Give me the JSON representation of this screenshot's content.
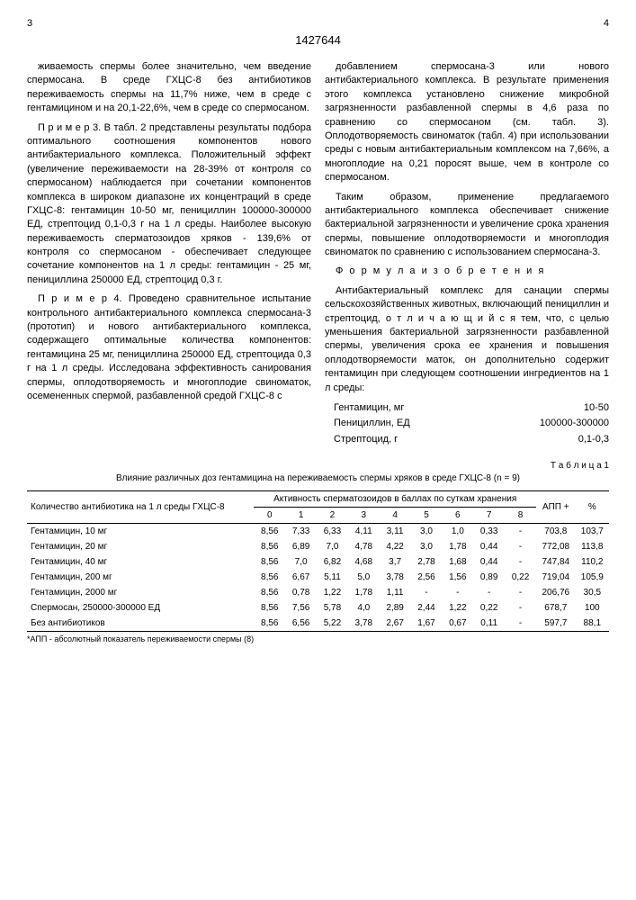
{
  "page_left": "3",
  "page_right": "4",
  "doc_number": "1427644",
  "left_col": {
    "p1": "живаемость спермы более значительно, чем введение спермосана. В среде ГХЦС-8 без антибиотиков переживаемость спермы на 11,7% ниже, чем в среде с гентамицином и на 20,1-22,6%, чем в среде со спермосаном.",
    "p2": "П р и м е р 3. В табл. 2 представлены результаты подбора оптимального соотношения компонентов нового антибактериального комплекса. Положительный эффект (увеличение переживаемости на 28-39% от контроля со спермосаном) наблюдается при сочетании компонентов комплекса в широком диапазоне их концентраций в среде ГХЦС-8: гентамицин 10-50 мг, пенициллин 100000-300000 ЕД, стрептоцид 0,1-0,3 г на 1 л среды. Наиболее высокую переживаемость сперматозоидов хряков - 139,6% от контроля со спермосаном - обеспечивает следующее сочетание компонентов на 1 л среды: гентамицин - 25 мг, пенициллина 250000 ЕД, стрептоцид 0,3 г.",
    "p3": "П р и м е р 4. Проведено сравнительное испытание контрольного антибактериального комплекса спермосана-3 (прототип) и нового антибактериального комплекса, содержащего оптимальные количества компонентов: гентамицина 25 мг, пенициллина 250000 ЕД, стрептоцида 0,3 г на 1 л среды. Исследована эффективность санирования спермы, оплодотворяемость и многоплодие свиноматок, осемененных спермой, разбавленной средой ГХЦС-8 с"
  },
  "right_col": {
    "p1": "добавлением спермосана-3 или нового антибактериального комплекса. В результате применения этого комплекса установлено снижение микробной загрязненности разбавленной спермы в 4,6 раза по сравнению со спермосаном (см. табл. 3). Оплодотворяемость свиноматок (табл. 4) при использовании среды с новым антибактериальным комплексом на 7,66%, а многоплодие на 0,21 поросят выше, чем в контроле со спермосаном.",
    "p2": "Таким образом, применение предлагаемого антибактериального комплекса обеспечивает снижение бактериальной загрязненности и увеличение срока хранения спермы, повышение оплодотворяемости и многоплодия свиноматок по сравнению с использованием спермосана-3.",
    "formula_title": "Ф о р м у л а  и з о б р е т е н и я",
    "p3": "Антибактериальный комплекс для санации спермы сельскохозяйственных животных, включающий пенициллин и стрептоцид, о т л и ч а ю щ и й с я тем, что, с целью уменьшения бактериальной загрязненности разбавленной спермы, увеличения срока ее хранения и повышения оплодотворяемости маток, он дополнительно содержит гентамицин при следующем соотношении ингредиентов на 1 л среды:",
    "ingredients": [
      {
        "name": "Гентамицин, мг",
        "val": "10-50"
      },
      {
        "name": "Пенициллин, ЕД",
        "val": "100000-300000"
      },
      {
        "name": "Стрептоцид, г",
        "val": "0,1-0,3"
      }
    ]
  },
  "table": {
    "title": "Т а б л и ц а 1",
    "caption": "Влияние различных доз гентамицина на переживаемость спермы хряков в среде ГХЦС-8 (n = 9)",
    "header_col1": "Количество антибиотика на 1 л среды ГХЦС-8",
    "header_span": "Активность сперматозоидов в баллах по суткам хранения",
    "day_headers": [
      "0",
      "1",
      "2",
      "3",
      "4",
      "5",
      "6",
      "7",
      "8"
    ],
    "app_header": "АПП +",
    "pct_header": "%",
    "rows": [
      {
        "name": "Гентамицин, 10 мг",
        "vals": [
          "8,56",
          "7,33",
          "6,33",
          "4,11",
          "3,11",
          "3,0",
          "1,0",
          "0,33",
          "-",
          "703,8",
          "103,7"
        ]
      },
      {
        "name": "Гентамицин, 20 мг",
        "vals": [
          "8,56",
          "6,89",
          "7,0",
          "4,78",
          "4,22",
          "3,0",
          "1,78",
          "0,44",
          "-",
          "772,08",
          "113,8"
        ]
      },
      {
        "name": "Гентамицин, 40 мг",
        "vals": [
          "8,56",
          "7,0",
          "6,82",
          "4,68",
          "3,7",
          "2,78",
          "1,68",
          "0,44",
          "-",
          "747,84",
          "110,2"
        ]
      },
      {
        "name": "Гентамицин, 200 мг",
        "vals": [
          "8,56",
          "6,67",
          "5,11",
          "5,0",
          "3,78",
          "2,56",
          "1,56",
          "0,89",
          "0,22",
          "719,04",
          "105,9"
        ]
      },
      {
        "name": "Гентамицин, 2000 мг",
        "vals": [
          "8,56",
          "0,78",
          "1,22",
          "1,78",
          "1,11",
          "-",
          "-",
          "-",
          "-",
          "206,76",
          "30,5"
        ]
      },
      {
        "name": "Спермосан, 250000-300000 ЕД",
        "vals": [
          "8,56",
          "7,56",
          "5,78",
          "4,0",
          "2,89",
          "2,44",
          "1,22",
          "0,22",
          "-",
          "678,7",
          "100"
        ]
      },
      {
        "name": "Без антибиотиков",
        "vals": [
          "8,56",
          "6,56",
          "5,22",
          "3,78",
          "2,67",
          "1,67",
          "0,67",
          "0,11",
          "-",
          "597,7",
          "88,1"
        ]
      }
    ],
    "footnote": "*АПП - абсолютный показатель переживаемости спермы (8)"
  }
}
